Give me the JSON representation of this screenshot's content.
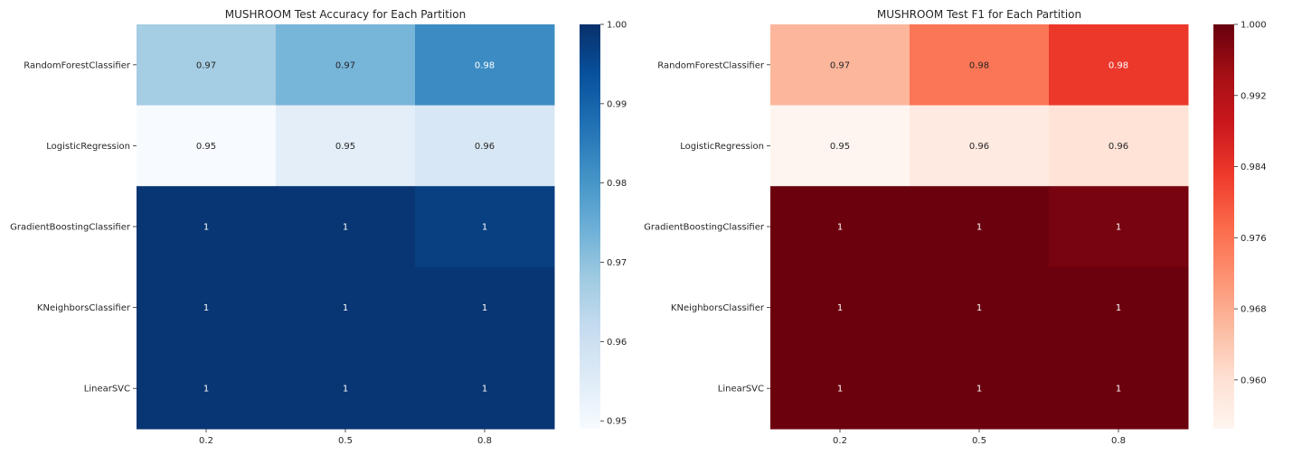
{
  "chart_data": [
    {
      "type": "heatmap",
      "title": "MUSHROOM Test Accuracy for Each Partition",
      "xlabel": "",
      "ylabel": "",
      "x_categories": [
        "0.2",
        "0.5",
        "0.8"
      ],
      "y_categories": [
        "RandomForestClassifier",
        "LogisticRegression",
        "GradientBoostingClassifier",
        "KNeighborsClassifier",
        "LinearSVC"
      ],
      "values": [
        [
          0.967,
          0.973,
          0.982
        ],
        [
          0.949,
          0.954,
          0.957
        ],
        [
          0.999,
          0.999,
          0.997
        ],
        [
          0.999,
          0.999,
          0.999
        ],
        [
          0.999,
          0.999,
          0.999
        ]
      ],
      "annotations": [
        [
          "0.97",
          "0.97",
          "0.98"
        ],
        [
          "0.95",
          "0.95",
          "0.96"
        ],
        [
          "1",
          "1",
          "1"
        ],
        [
          "1",
          "1",
          "1"
        ],
        [
          "1",
          "1",
          "1"
        ]
      ],
      "colormap": "Blues",
      "color_low": "#f7fbff",
      "color_high": "#08306b",
      "vmin": 0.949,
      "vmax": 1.0,
      "colorbar_ticks": [
        "0.95",
        "0.96",
        "0.97",
        "0.98",
        "0.99",
        "1.00"
      ],
      "colorbar_tick_values": [
        0.95,
        0.96,
        0.97,
        0.98,
        0.99,
        1.0
      ]
    },
    {
      "type": "heatmap",
      "title": "MUSHROOM Test F1 for Each Partition",
      "xlabel": "",
      "ylabel": "",
      "x_categories": [
        "0.2",
        "0.5",
        "0.8"
      ],
      "y_categories": [
        "RandomForestClassifier",
        "LogisticRegression",
        "GradientBoostingClassifier",
        "KNeighborsClassifier",
        "LinearSVC"
      ],
      "values": [
        [
          0.9665,
          0.9755,
          0.9835
        ],
        [
          0.9545,
          0.9575,
          0.9595
        ],
        [
          0.9995,
          0.9995,
          0.9985
        ],
        [
          0.9995,
          0.9995,
          0.9995
        ],
        [
          0.9995,
          0.9995,
          0.9995
        ]
      ],
      "annotations": [
        [
          "0.97",
          "0.98",
          "0.98"
        ],
        [
          "0.95",
          "0.96",
          "0.96"
        ],
        [
          "1",
          "1",
          "1"
        ],
        [
          "1",
          "1",
          "1"
        ],
        [
          "1",
          "1",
          "1"
        ]
      ],
      "colormap": "Reds",
      "color_low": "#fff5f0",
      "color_high": "#67000d",
      "vmin": 0.9545,
      "vmax": 1.0,
      "colorbar_ticks": [
        "0.960",
        "0.968",
        "0.976",
        "0.984",
        "0.992",
        "1.000"
      ],
      "colorbar_tick_values": [
        0.96,
        0.968,
        0.976,
        0.984,
        0.992,
        1.0
      ]
    }
  ]
}
